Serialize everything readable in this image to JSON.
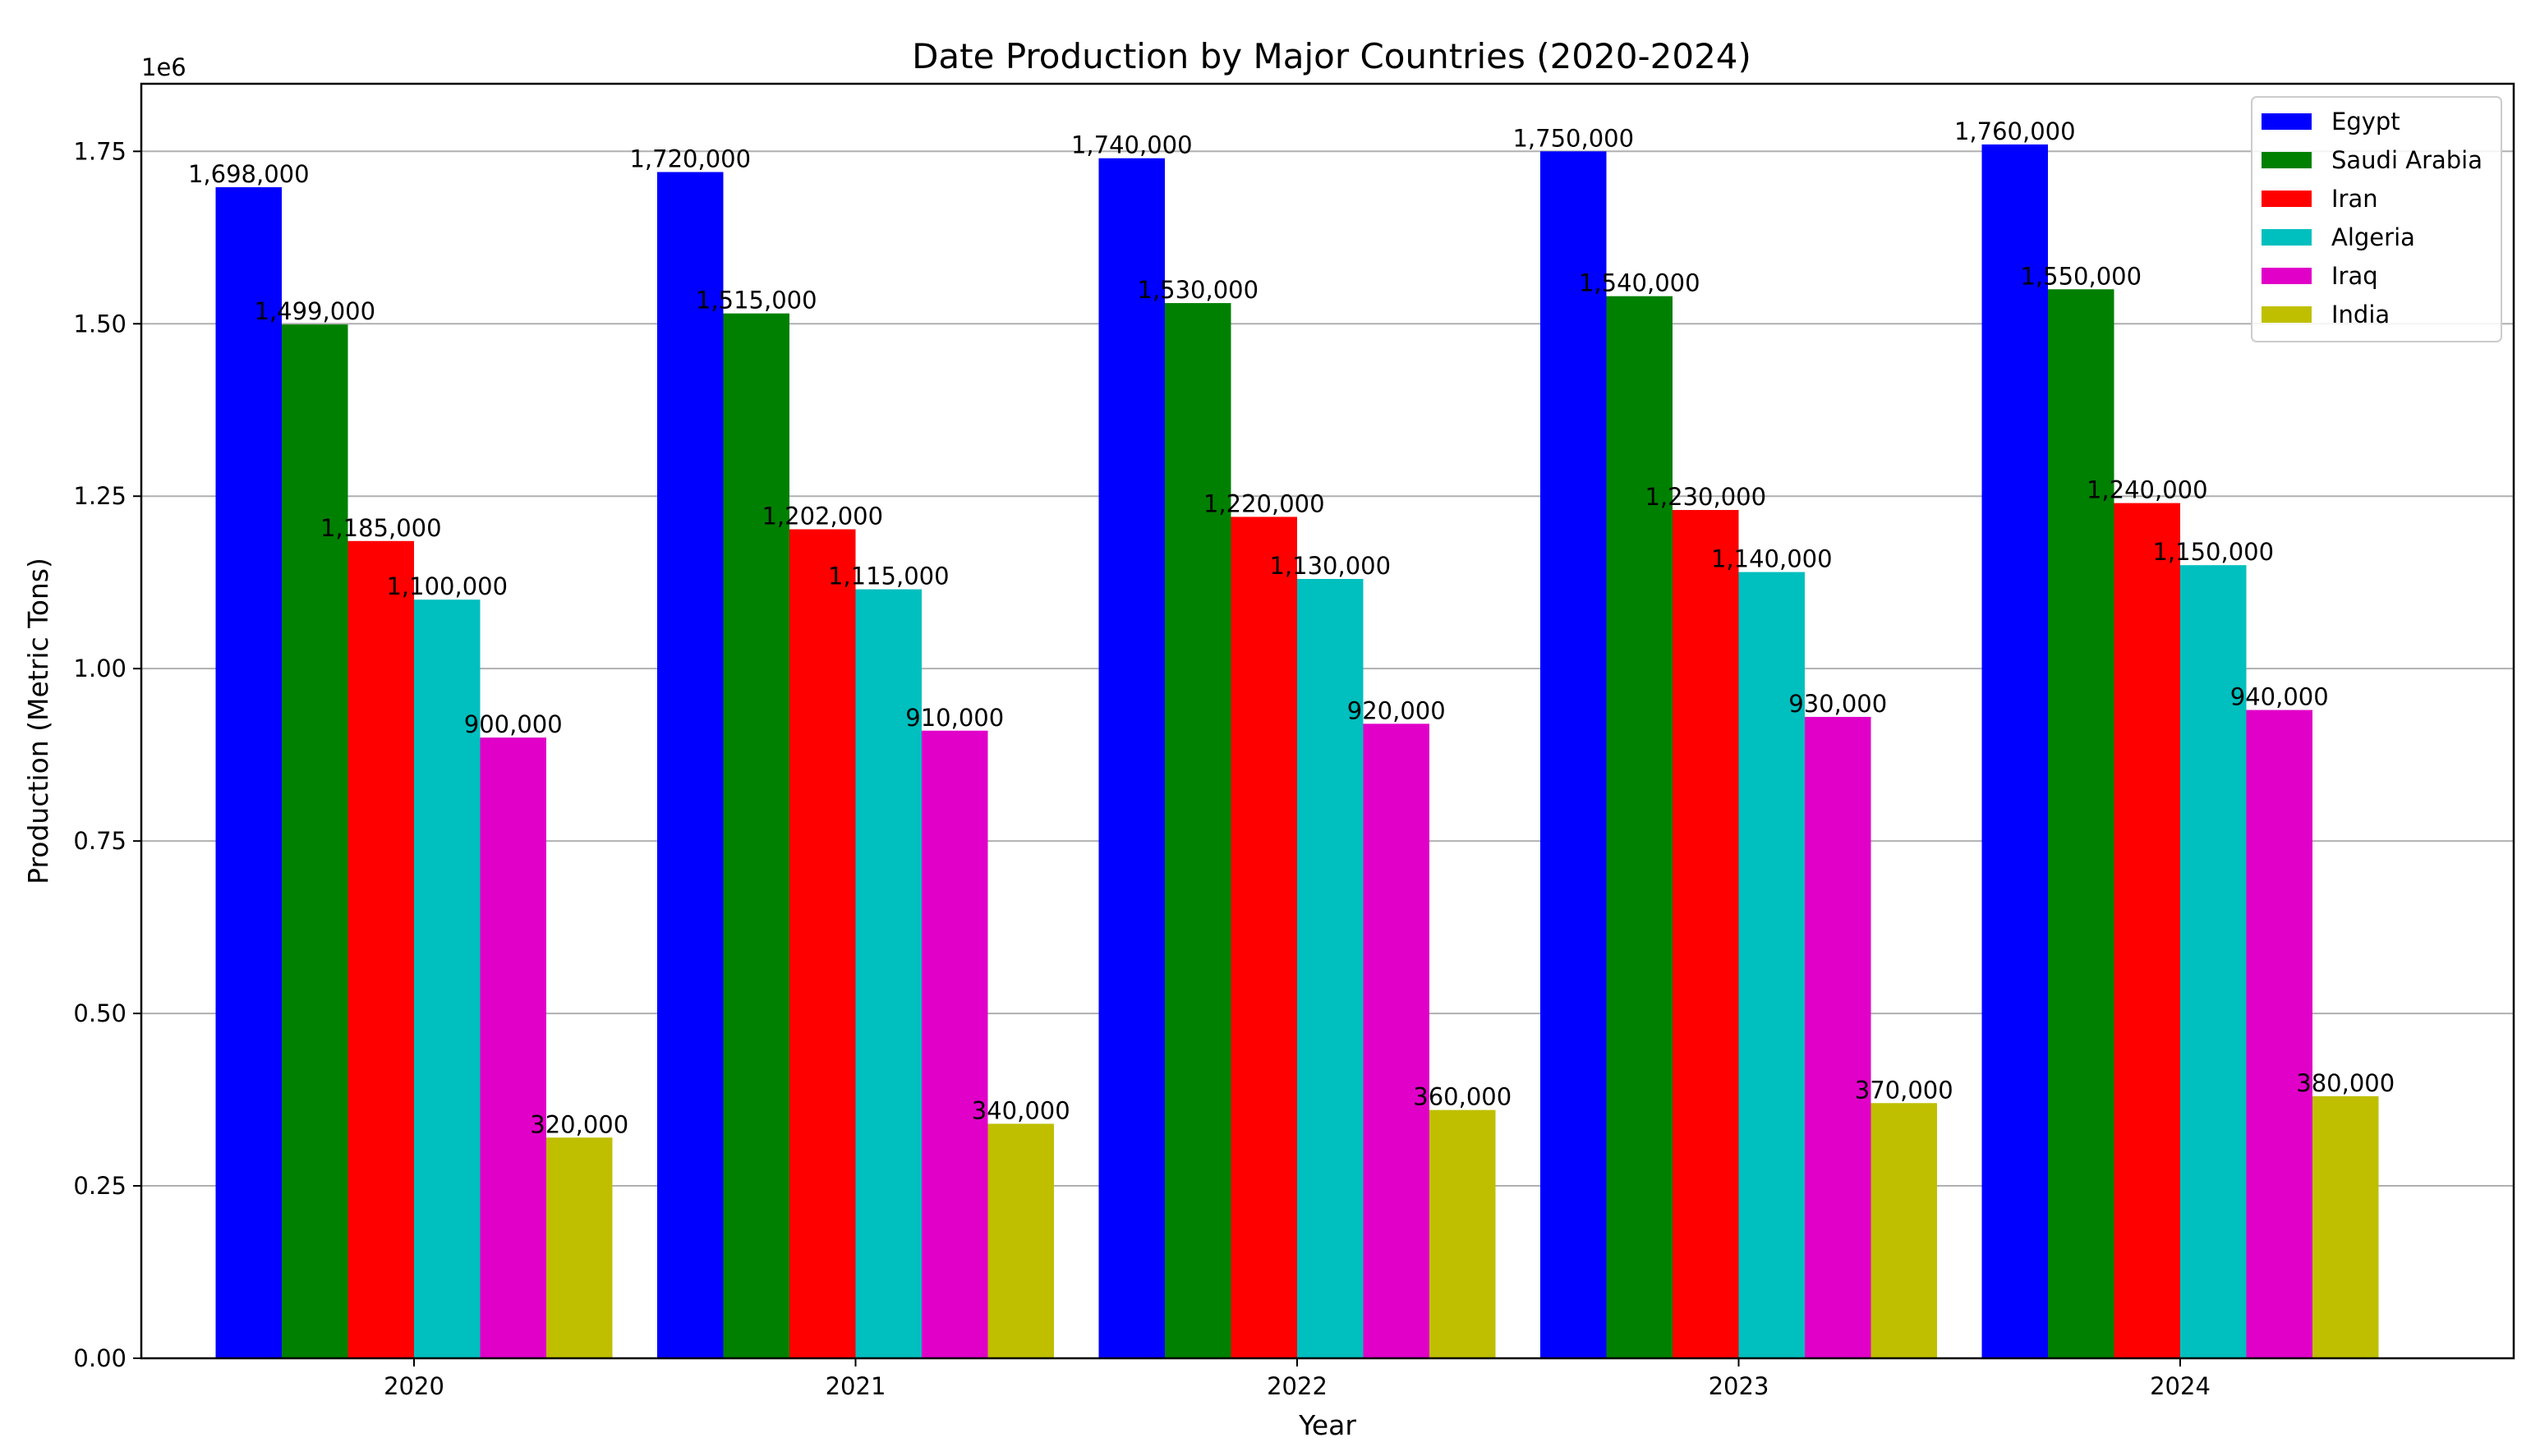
{
  "chart_data": {
    "type": "bar",
    "title": "Date Production by Major Countries (2020-2024)",
    "xlabel": "Year",
    "ylabel": "Production (Metric Tons)",
    "y_offset_text": "1e6",
    "ylim": [
      0,
      1848000
    ],
    "y_ticks": [
      0,
      250000,
      500000,
      750000,
      1000000,
      1250000,
      1500000,
      1750000
    ],
    "y_tick_labels": [
      "0.00",
      "0.25",
      "0.50",
      "0.75",
      "1.00",
      "1.25",
      "1.50",
      "1.75"
    ],
    "grid": "y-major",
    "legend_position": "top-right",
    "categories": [
      "2020",
      "2021",
      "2022",
      "2023",
      "2024"
    ],
    "series": [
      {
        "name": "Egypt",
        "color": "#0000ff",
        "values": [
          1698000,
          1720000,
          1740000,
          1750000,
          1760000
        ],
        "labels": [
          "1,698,000",
          "1,720,000",
          "1,740,000",
          "1,750,000",
          "1,760,000"
        ]
      },
      {
        "name": "Saudi Arabia",
        "color": "#008000",
        "values": [
          1499000,
          1515000,
          1530000,
          1540000,
          1550000
        ],
        "labels": [
          "1,499,000",
          "1,515,000",
          "1,530,000",
          "1,540,000",
          "1,550,000"
        ]
      },
      {
        "name": "Iran",
        "color": "#ff0000",
        "values": [
          1185000,
          1202000,
          1220000,
          1230000,
          1240000
        ],
        "labels": [
          "1,185,000",
          "1,202,000",
          "1,220,000",
          "1,230,000",
          "1,240,000"
        ]
      },
      {
        "name": "Algeria",
        "color": "#00bfbf",
        "values": [
          1100000,
          1115000,
          1130000,
          1140000,
          1150000
        ],
        "labels": [
          "1,100,000",
          "1,115,000",
          "1,130,000",
          "1,140,000",
          "1,150,000"
        ]
      },
      {
        "name": "Iraq",
        "color": "#e000c8",
        "values": [
          900000,
          910000,
          920000,
          930000,
          940000
        ],
        "labels": [
          "900,000",
          "910,000",
          "920,000",
          "930,000",
          "940,000"
        ]
      },
      {
        "name": "India",
        "color": "#bfbf00",
        "values": [
          320000,
          340000,
          360000,
          370000,
          380000
        ],
        "labels": [
          "320,000",
          "340,000",
          "360,000",
          "370,000",
          "380,000"
        ]
      }
    ]
  }
}
